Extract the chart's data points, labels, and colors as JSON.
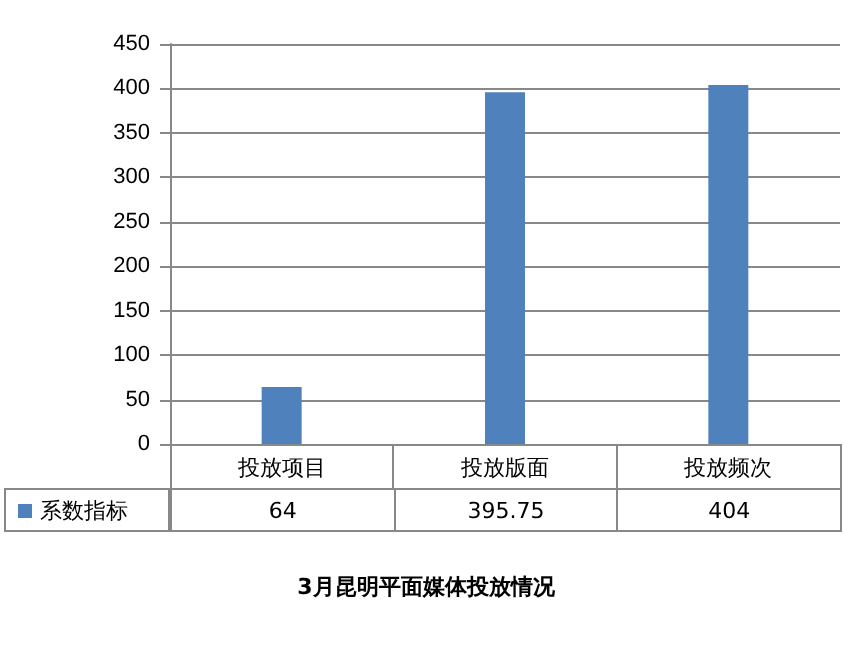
{
  "chart_data": {
    "type": "bar",
    "title": "3月昆明平面媒体投放情况",
    "categories": [
      "投放项目",
      "投放版面",
      "投放频次"
    ],
    "series": [
      {
        "name": "系数指标",
        "color": "#4f81bd",
        "values": [
          64,
          395.75,
          404
        ]
      }
    ],
    "ylim": [
      0,
      450
    ],
    "yticks": [
      0,
      50,
      100,
      150,
      200,
      250,
      300,
      350,
      400,
      450
    ],
    "grid": "y",
    "legend": "bottom left",
    "data_labels": true
  }
}
